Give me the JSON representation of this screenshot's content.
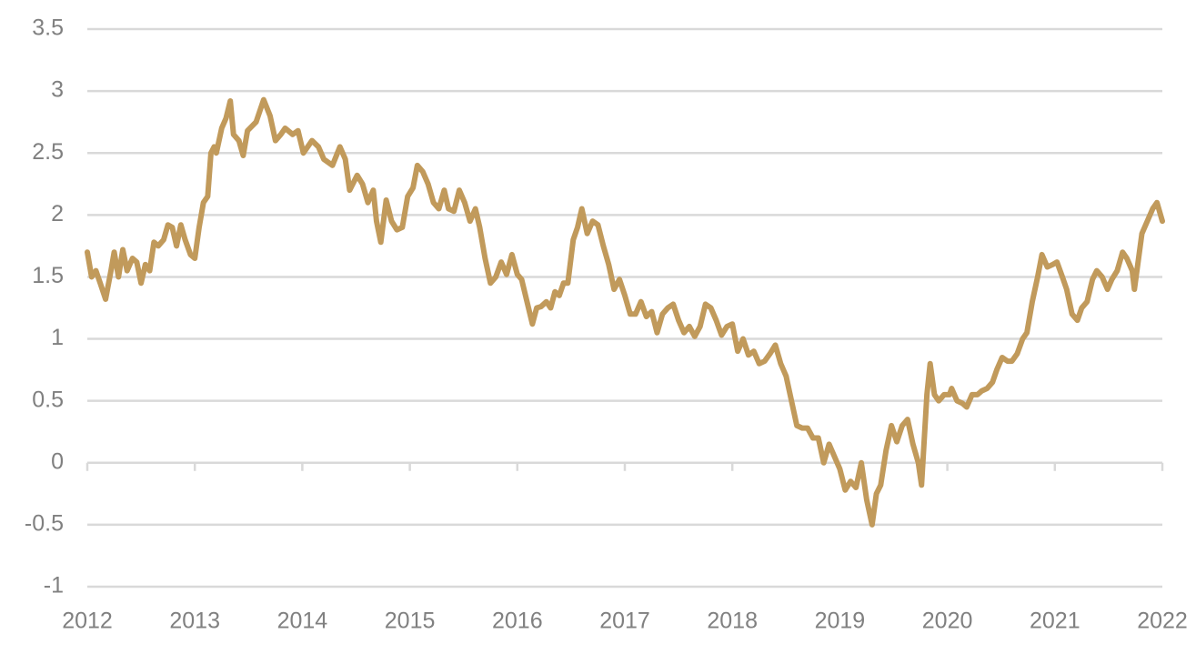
{
  "chart_data": {
    "type": "line",
    "color": "#c19a5b",
    "grid": true,
    "xlim": [
      2012,
      2022
    ],
    "xticks": [
      2012,
      2013,
      2014,
      2015,
      2016,
      2017,
      2018,
      2019,
      2020,
      2021,
      2022
    ],
    "ylim": [
      -1,
      3.5
    ],
    "yticks": [
      -1,
      -0.5,
      0,
      0.5,
      1,
      1.5,
      2,
      2.5,
      3,
      3.5
    ],
    "x": [
      2012.0,
      2012.04,
      2012.08,
      2012.12,
      2012.17,
      2012.22,
      2012.25,
      2012.29,
      2012.33,
      2012.37,
      2012.42,
      2012.46,
      2012.5,
      2012.54,
      2012.58,
      2012.62,
      2012.66,
      2012.71,
      2012.75,
      2012.79,
      2012.83,
      2012.87,
      2012.91,
      2012.96,
      2013.0,
      2013.04,
      2013.08,
      2013.12,
      2013.15,
      2013.18,
      2013.2,
      2013.25,
      2013.29,
      2013.33,
      2013.36,
      2013.41,
      2013.45,
      2013.49,
      2013.57,
      2013.64,
      2013.7,
      2013.75,
      2013.8,
      2013.84,
      2013.91,
      2013.96,
      2014.01,
      2014.09,
      2014.15,
      2014.2,
      2014.28,
      2014.35,
      2014.4,
      2014.44,
      2014.51,
      2014.56,
      2014.61,
      2014.66,
      2014.69,
      2014.73,
      2014.78,
      2014.83,
      2014.88,
      2014.93,
      2014.98,
      2015.03,
      2015.07,
      2015.12,
      2015.17,
      2015.22,
      2015.27,
      2015.32,
      2015.36,
      2015.41,
      2015.46,
      2015.51,
      2015.56,
      2015.61,
      2015.65,
      2015.7,
      2015.75,
      2015.8,
      2015.85,
      2015.9,
      2015.95,
      2016.0,
      2016.04,
      2016.09,
      2016.14,
      2016.18,
      2016.22,
      2016.27,
      2016.31,
      2016.35,
      2016.39,
      2016.43,
      2016.47,
      2016.52,
      2016.56,
      2016.6,
      2016.65,
      2016.7,
      2016.75,
      2016.8,
      2016.85,
      2016.9,
      2016.95,
      2017.0,
      2017.05,
      2017.1,
      2017.15,
      2017.2,
      2017.25,
      2017.3,
      2017.35,
      2017.4,
      2017.45,
      2017.5,
      2017.55,
      2017.6,
      2017.65,
      2017.7,
      2017.75,
      2017.8,
      2017.85,
      2017.9,
      2017.95,
      2018.0,
      2018.05,
      2018.1,
      2018.15,
      2018.2,
      2018.25,
      2018.3,
      2018.35,
      2018.4,
      2018.45,
      2018.5,
      2018.55,
      2018.6,
      2018.65,
      2018.7,
      2018.75,
      2018.8,
      2018.85,
      2018.9,
      2018.95,
      2019.0,
      2019.05,
      2019.1,
      2019.15,
      2019.2,
      2019.25,
      2019.3,
      2019.34,
      2019.38,
      2019.43,
      2019.48,
      2019.53,
      2019.58,
      2019.63,
      2019.68,
      2019.73,
      2019.76,
      2019.81,
      2019.84,
      2019.88,
      2019.92,
      2019.97,
      2020.02,
      2020.04,
      2020.09,
      2020.14,
      2020.18,
      2020.23,
      2020.28,
      2020.32,
      2020.37,
      2020.42,
      2020.46,
      2020.51,
      2020.56,
      2020.6,
      2020.65,
      2020.7,
      2020.74,
      2020.79,
      2020.84,
      2020.88,
      2020.93,
      2020.98,
      2021.02,
      2021.07,
      2021.11,
      2021.16,
      2021.21,
      2021.25,
      2021.3,
      2021.35,
      2021.39,
      2021.44,
      2021.49,
      2021.53,
      2021.58,
      2021.63,
      2021.67,
      2021.72,
      2021.74,
      2021.81,
      2021.86,
      2021.91,
      2021.95,
      2022.0
    ],
    "values": [
      1.7,
      1.5,
      1.55,
      1.45,
      1.32,
      1.55,
      1.7,
      1.5,
      1.72,
      1.55,
      1.65,
      1.62,
      1.45,
      1.6,
      1.55,
      1.78,
      1.75,
      1.8,
      1.92,
      1.9,
      1.75,
      1.92,
      1.8,
      1.68,
      1.65,
      1.9,
      2.1,
      2.15,
      2.5,
      2.55,
      2.5,
      2.7,
      2.78,
      2.92,
      2.65,
      2.6,
      2.48,
      2.68,
      2.75,
      2.93,
      2.8,
      2.6,
      2.65,
      2.7,
      2.65,
      2.68,
      2.5,
      2.6,
      2.55,
      2.45,
      2.4,
      2.55,
      2.45,
      2.2,
      2.32,
      2.25,
      2.1,
      2.2,
      1.95,
      1.78,
      2.12,
      1.95,
      1.88,
      1.9,
      2.15,
      2.22,
      2.4,
      2.35,
      2.25,
      2.1,
      2.05,
      2.2,
      2.05,
      2.03,
      2.2,
      2.1,
      1.95,
      2.05,
      1.9,
      1.65,
      1.45,
      1.5,
      1.62,
      1.52,
      1.68,
      1.52,
      1.48,
      1.3,
      1.12,
      1.25,
      1.26,
      1.3,
      1.25,
      1.38,
      1.35,
      1.45,
      1.45,
      1.8,
      1.9,
      2.05,
      1.85,
      1.95,
      1.92,
      1.75,
      1.6,
      1.4,
      1.48,
      1.35,
      1.2,
      1.2,
      1.3,
      1.18,
      1.22,
      1.05,
      1.2,
      1.25,
      1.28,
      1.15,
      1.05,
      1.1,
      1.02,
      1.1,
      1.28,
      1.25,
      1.15,
      1.03,
      1.1,
      1.12,
      0.9,
      1.0,
      0.87,
      0.9,
      0.8,
      0.82,
      0.88,
      0.95,
      0.8,
      0.7,
      0.5,
      0.3,
      0.28,
      0.28,
      0.2,
      0.2,
      0.0,
      0.15,
      0.05,
      -0.05,
      -0.22,
      -0.15,
      -0.2,
      0.0,
      -0.3,
      -0.5,
      -0.25,
      -0.18,
      0.1,
      0.3,
      0.17,
      0.3,
      0.35,
      0.15,
      0.0,
      -0.18,
      0.55,
      0.8,
      0.55,
      0.5,
      0.55,
      0.55,
      0.6,
      0.5,
      0.48,
      0.45,
      0.55,
      0.55,
      0.58,
      0.6,
      0.65,
      0.75,
      0.85,
      0.82,
      0.82,
      0.88,
      1.0,
      1.05,
      1.3,
      1.5,
      1.68,
      1.58,
      1.6,
      1.62,
      1.5,
      1.4,
      1.2,
      1.15,
      1.25,
      1.3,
      1.48,
      1.55,
      1.5,
      1.4,
      1.48,
      1.55,
      1.7,
      1.65,
      1.55,
      1.4,
      1.85,
      1.95,
      2.05,
      2.1,
      1.95
    ]
  }
}
